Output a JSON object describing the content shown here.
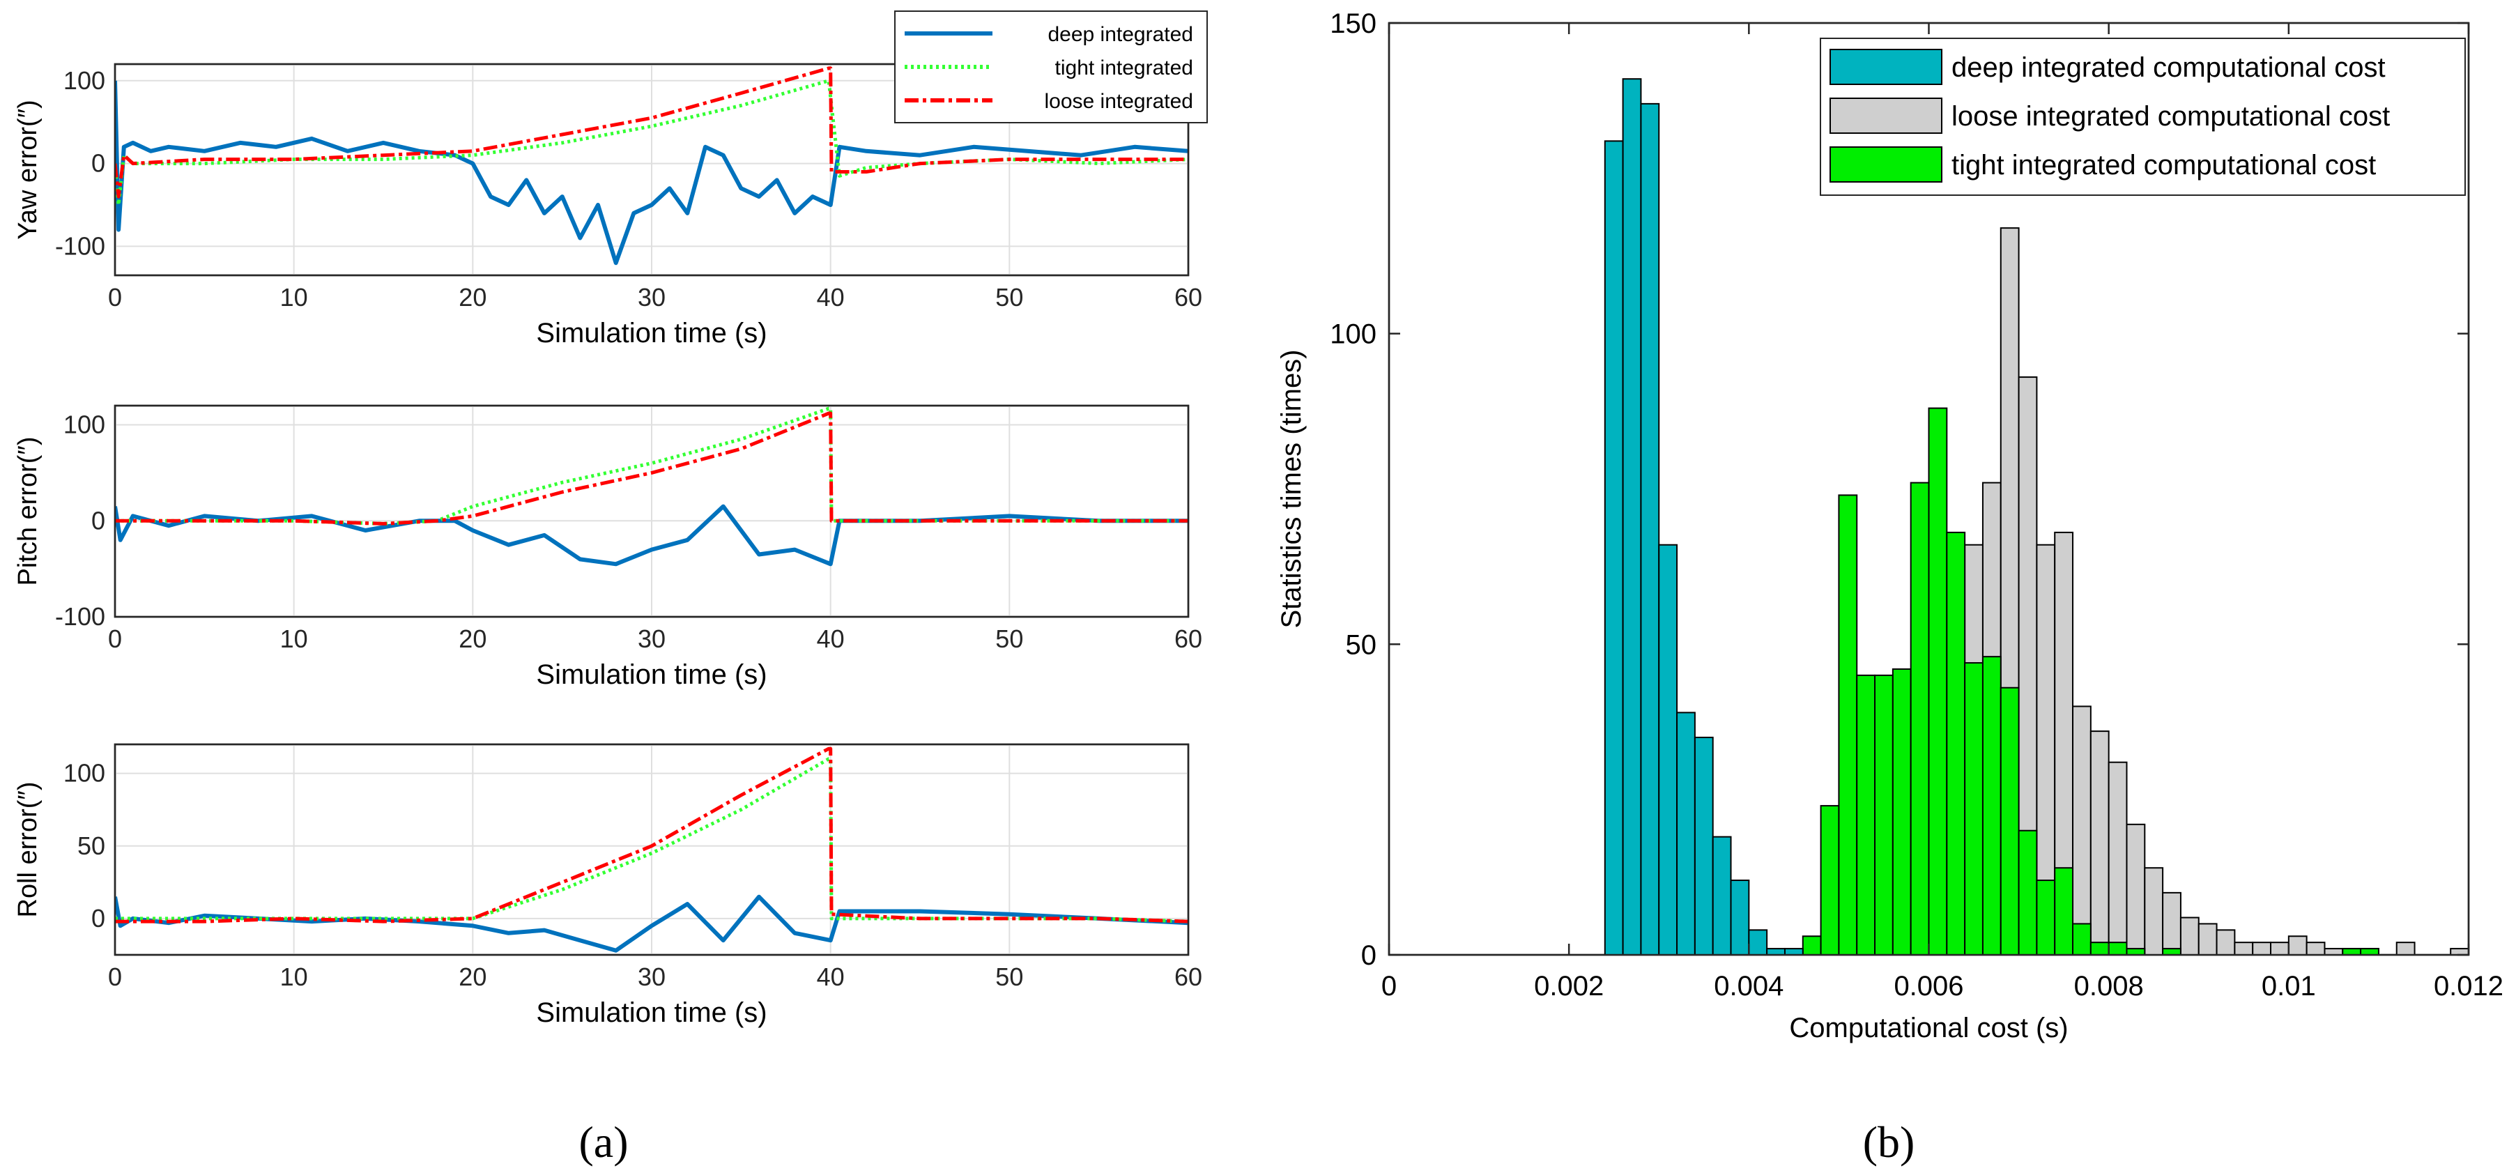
{
  "panel_labels": {
    "a": "(a)",
    "b": "(b)"
  },
  "colors": {
    "deep": "#0072BD",
    "tight": "#33ff33",
    "loose": "#ff0000",
    "hist_deep": "#00b3bf",
    "hist_loose": "#cfcfcf",
    "hist_tight": "#00ee00",
    "edge": "#000000"
  },
  "chart_data": [
    {
      "type": "line",
      "ylabel": "Yaw error(″)",
      "xlabel": "Simulation time (s)",
      "xlim": [
        0,
        60
      ],
      "ylim": [
        -135,
        120
      ],
      "xticks": [
        "0",
        "10",
        "20",
        "30",
        "40",
        "50",
        "60"
      ],
      "yticks": [
        "-100",
        "0",
        "100"
      ],
      "grid": true,
      "legend": {
        "position": "top-right",
        "entries": [
          "deep integrated",
          "tight integrated",
          "loose integrated"
        ]
      },
      "series": [
        {
          "name": "deep integrated",
          "x": [
            0,
            0.2,
            0.5,
            1,
            2,
            3,
            5,
            7,
            9,
            11,
            13,
            15,
            17,
            19,
            20,
            21,
            22,
            23,
            24,
            25,
            26,
            27,
            28,
            29,
            30,
            31,
            32,
            33,
            34,
            35,
            36,
            37,
            38,
            39,
            40,
            40.5,
            42,
            45,
            48,
            51,
            54,
            57,
            60
          ],
          "y": [
            100,
            -80,
            20,
            25,
            15,
            20,
            15,
            25,
            20,
            30,
            15,
            25,
            15,
            10,
            0,
            -40,
            -50,
            -20,
            -60,
            -40,
            -90,
            -50,
            -120,
            -60,
            -50,
            -30,
            -60,
            20,
            10,
            -30,
            -40,
            -20,
            -60,
            -40,
            -50,
            20,
            15,
            10,
            20,
            15,
            10,
            20,
            15
          ]
        },
        {
          "name": "tight integrated",
          "x": [
            0,
            0.2,
            0.5,
            1,
            5,
            10,
            15,
            20,
            25,
            30,
            35,
            39.9,
            40,
            40.5,
            42,
            45,
            50,
            55,
            60
          ],
          "y": [
            0,
            -50,
            10,
            0,
            0,
            5,
            5,
            10,
            25,
            45,
            70,
            100,
            80,
            -15,
            -5,
            0,
            5,
            0,
            5
          ]
        },
        {
          "name": "loose integrated",
          "x": [
            0,
            0.2,
            0.5,
            1,
            5,
            10,
            15,
            20,
            25,
            30,
            35,
            39.9,
            40,
            40.05,
            42,
            45,
            50,
            55,
            60
          ],
          "y": [
            0,
            -40,
            10,
            0,
            5,
            5,
            10,
            15,
            35,
            55,
            85,
            115,
            115,
            -10,
            -10,
            0,
            5,
            5,
            5
          ]
        }
      ]
    },
    {
      "type": "line",
      "ylabel": "Pitch error(″)",
      "xlabel": "Simulation time (s)",
      "xlim": [
        0,
        60
      ],
      "ylim": [
        -100,
        120
      ],
      "xticks": [
        "0",
        "10",
        "20",
        "30",
        "40",
        "50",
        "60"
      ],
      "yticks": [
        "-100",
        "0",
        "100"
      ],
      "grid": true,
      "series": [
        {
          "name": "deep integrated",
          "x": [
            0,
            0.3,
            1,
            3,
            5,
            8,
            11,
            14,
            17,
            19,
            20,
            22,
            24,
            26,
            28,
            30,
            32,
            34,
            36,
            38,
            40,
            40.5,
            45,
            50,
            55,
            60
          ],
          "y": [
            15,
            -20,
            5,
            -5,
            5,
            0,
            5,
            -10,
            0,
            0,
            -10,
            -25,
            -15,
            -40,
            -45,
            -30,
            -20,
            15,
            -35,
            -30,
            -45,
            0,
            0,
            5,
            0,
            0
          ]
        },
        {
          "name": "tight integrated",
          "x": [
            0,
            5,
            10,
            15,
            18,
            20,
            25,
            30,
            35,
            39.9,
            40,
            40.05,
            45,
            50,
            55,
            60
          ],
          "y": [
            0,
            0,
            0,
            -3,
            0,
            15,
            40,
            60,
            85,
            117,
            117,
            0,
            0,
            0,
            0,
            0
          ]
        },
        {
          "name": "loose integrated",
          "x": [
            0,
            5,
            10,
            15,
            18,
            20,
            25,
            30,
            35,
            39.9,
            40,
            40.05,
            45,
            50,
            55,
            60
          ],
          "y": [
            0,
            0,
            0,
            -3,
            0,
            5,
            30,
            50,
            75,
            112,
            112,
            0,
            0,
            0,
            0,
            0
          ]
        }
      ]
    },
    {
      "type": "line",
      "ylabel": "Roll error(″)",
      "xlabel": "Simulation time (s)",
      "xlim": [
        0,
        60
      ],
      "ylim": [
        -25,
        120
      ],
      "xticks": [
        "0",
        "10",
        "20",
        "30",
        "40",
        "50",
        "60"
      ],
      "yticks": [
        "0",
        "50",
        "100"
      ],
      "grid": true,
      "series": [
        {
          "name": "deep integrated",
          "x": [
            0,
            0.3,
            1,
            3,
            5,
            8,
            11,
            14,
            17,
            20,
            22,
            24,
            26,
            28,
            30,
            32,
            34,
            36,
            38,
            40,
            40.5,
            45,
            50,
            55,
            60
          ],
          "y": [
            15,
            -5,
            0,
            -3,
            2,
            0,
            -2,
            0,
            -2,
            -5,
            -10,
            -8,
            -15,
            -22,
            -5,
            10,
            -15,
            15,
            -10,
            -15,
            5,
            5,
            3,
            0,
            -3
          ]
        },
        {
          "name": "tight integrated",
          "x": [
            0,
            5,
            10,
            15,
            20,
            25,
            30,
            35,
            39.9,
            40,
            40.05,
            45,
            50,
            55,
            60
          ],
          "y": [
            0,
            0,
            0,
            0,
            0,
            20,
            45,
            75,
            110,
            110,
            0,
            0,
            0,
            0,
            -2
          ]
        },
        {
          "name": "loose integrated",
          "x": [
            0,
            5,
            10,
            15,
            20,
            25,
            30,
            35,
            39.9,
            40,
            40.05,
            45,
            50,
            55,
            60
          ],
          "y": [
            -2,
            -2,
            0,
            -2,
            0,
            25,
            50,
            85,
            117,
            117,
            3,
            0,
            0,
            0,
            -2
          ]
        }
      ]
    },
    {
      "type": "histogram",
      "xlabel": "Computational cost (s)",
      "ylabel": "Statistics times (times)",
      "xlim": [
        0,
        0.012
      ],
      "ylim": [
        0,
        150
      ],
      "xticks": [
        "0",
        "0.002",
        "0.004",
        "0.006",
        "0.008",
        "0.01",
        "0.012"
      ],
      "yticks": [
        "0",
        "50",
        "100",
        "150"
      ],
      "bin_width": 0.0002,
      "legend": {
        "position": "top-right",
        "entries": [
          "deep integrated computational cost",
          "loose integrated computational cost",
          "tight integrated computational cost"
        ]
      },
      "series": [
        {
          "name": "loose integrated computational cost",
          "bin_starts": [
            0.0064,
            0.0066,
            0.0068,
            0.007,
            0.0072,
            0.0074,
            0.0076,
            0.0078,
            0.008,
            0.0082,
            0.0084,
            0.0086,
            0.0088,
            0.009,
            0.0092,
            0.0094,
            0.0096,
            0.0098,
            0.01,
            0.0102,
            0.0104,
            0.0106,
            0.0108,
            0.011,
            0.0112,
            0.0114,
            0.0116,
            0.0118
          ],
          "values": [
            66,
            76,
            117,
            93,
            66,
            68,
            40,
            36,
            31,
            21,
            14,
            10,
            6,
            5,
            4,
            2,
            2,
            2,
            3,
            2,
            1,
            1,
            1,
            0,
            2,
            0,
            0,
            1
          ]
        },
        {
          "name": "tight integrated computational cost",
          "bin_starts": [
            0.0046,
            0.0048,
            0.005,
            0.0052,
            0.0054,
            0.0056,
            0.0058,
            0.006,
            0.0062,
            0.0064,
            0.0066,
            0.0068,
            0.007,
            0.0072,
            0.0074,
            0.0076,
            0.0078,
            0.008,
            0.0082,
            0.0084,
            0.0086,
            0.0088,
            0.009,
            0.0092,
            0.0094,
            0.0096,
            0.0098,
            0.01,
            0.0102,
            0.0104,
            0.0106,
            0.0108
          ],
          "values": [
            3,
            24,
            74,
            45,
            45,
            46,
            76,
            88,
            68,
            47,
            48,
            43,
            20,
            12,
            14,
            5,
            2,
            2,
            1,
            0,
            1,
            0,
            0,
            0,
            0,
            0,
            0,
            0,
            0,
            0,
            1,
            1
          ]
        },
        {
          "name": "deep integrated computational cost",
          "bin_starts": [
            0.0024,
            0.0026,
            0.0028,
            0.003,
            0.0032,
            0.0034,
            0.0036,
            0.0038,
            0.004,
            0.0042,
            0.0044
          ],
          "values": [
            131,
            141,
            137,
            66,
            39,
            35,
            19,
            12,
            4,
            1,
            1
          ]
        }
      ]
    }
  ]
}
